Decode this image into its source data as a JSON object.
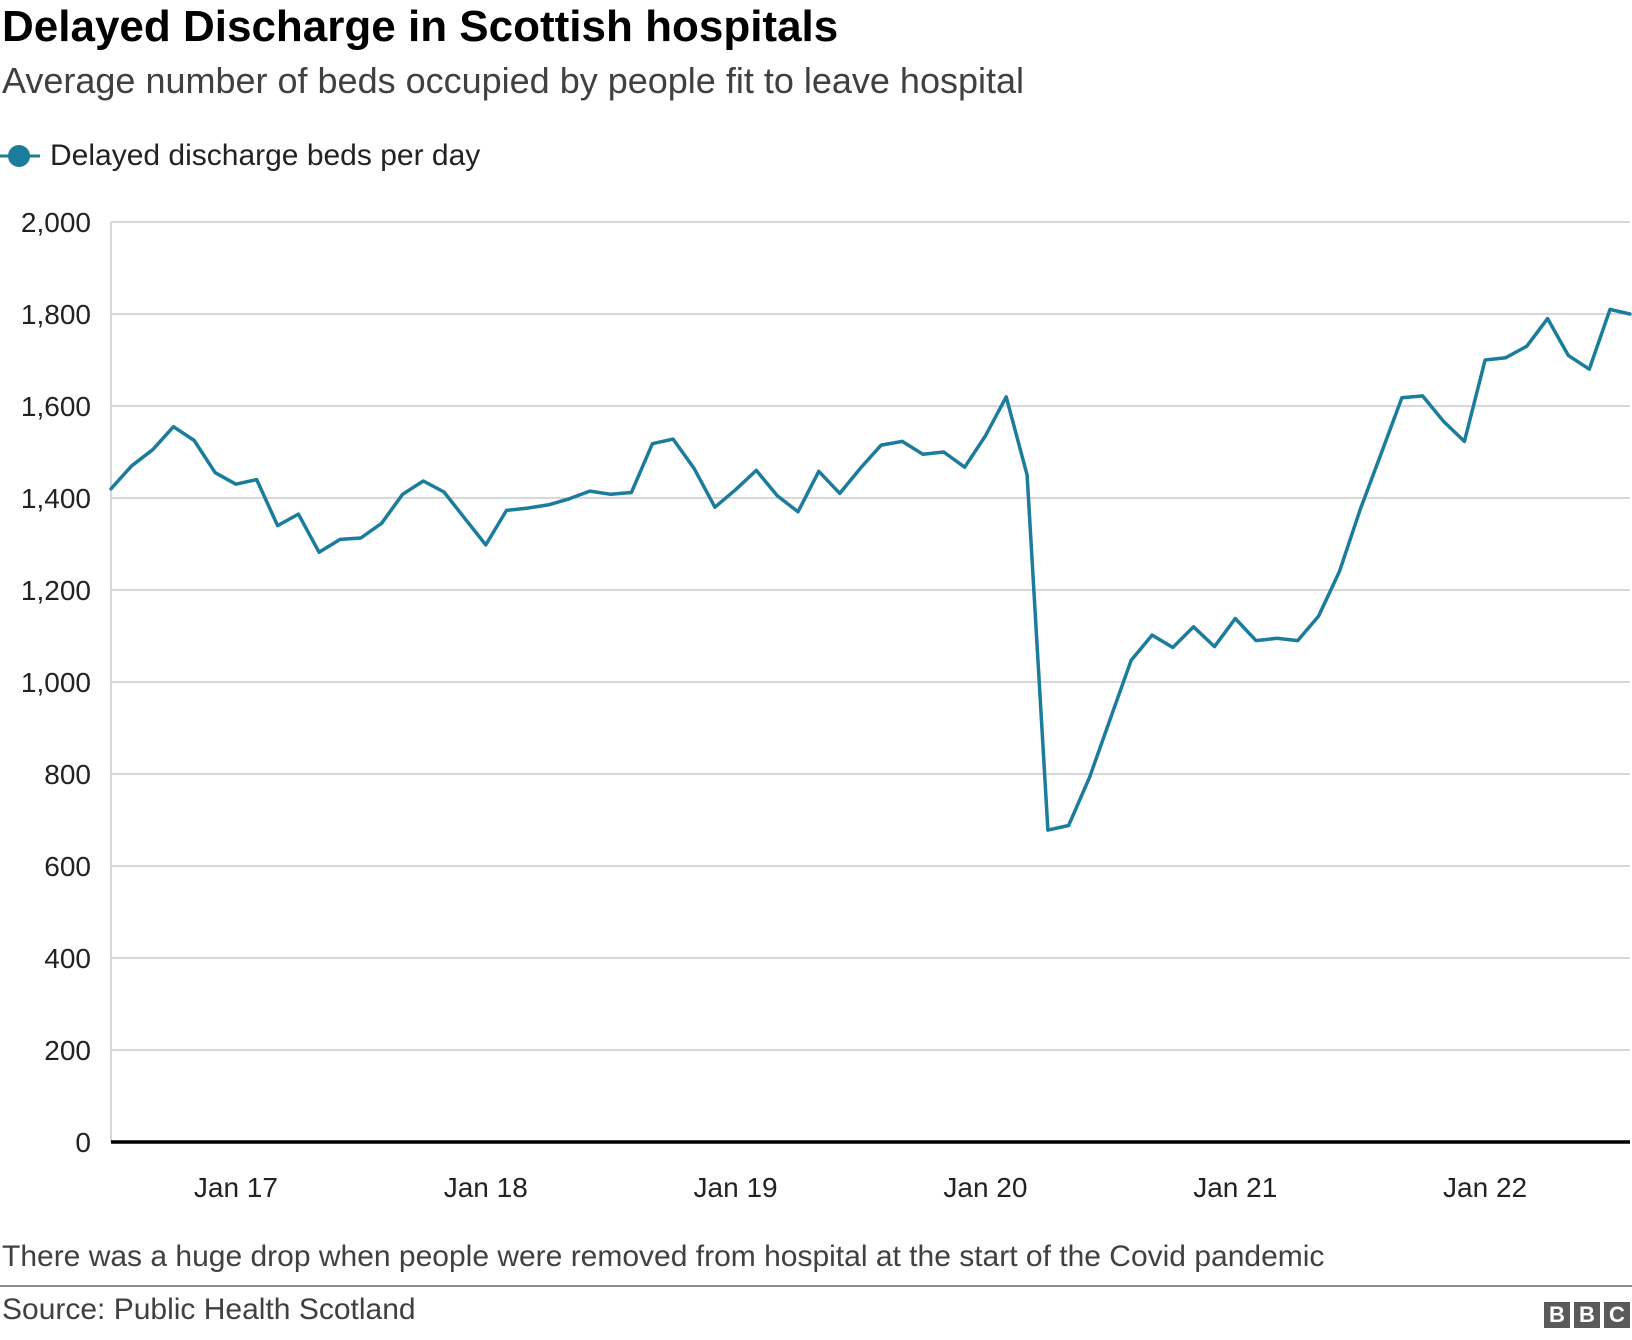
{
  "header": {
    "title": "Delayed Discharge in Scottish hospitals",
    "subtitle": "Average number of beds occupied by people fit to leave hospital"
  },
  "legend": {
    "label": "Delayed discharge beds per day"
  },
  "footer": {
    "caption": "There was a huge drop when people were removed from hospital at the start of the Covid pandemic",
    "source": "Source: Public Health Scotland",
    "logo": [
      "B",
      "B",
      "C"
    ]
  },
  "colors": {
    "line": "#1b7c9c",
    "grid": "#cccccc",
    "axis": "#000000"
  },
  "chart_data": {
    "type": "line",
    "title": "Delayed Discharge in Scottish hospitals",
    "subtitle": "Average number of beds occupied by people fit to leave hospital",
    "xlabel": "",
    "ylabel": "",
    "ylim": [
      0,
      2000
    ],
    "yticks": [
      0,
      200,
      400,
      600,
      800,
      1000,
      1200,
      1400,
      1600,
      1800,
      2000
    ],
    "ytick_labels": [
      "0",
      "200",
      "400",
      "600",
      "800",
      "1,000",
      "1,200",
      "1,400",
      "1,600",
      "1,800",
      "2,000"
    ],
    "xlim": [
      2016.5,
      2022.58
    ],
    "xticks": [
      2017,
      2018,
      2019,
      2020,
      2021,
      2022
    ],
    "xtick_labels": [
      "Jan 17",
      "Jan 18",
      "Jan 19",
      "Jan 20",
      "Jan 21",
      "Jan 22"
    ],
    "grid": true,
    "legend_position": "top-left",
    "series": [
      {
        "name": "Delayed discharge beds per day",
        "x": [
          2016.5,
          2016.583,
          2016.667,
          2016.75,
          2016.833,
          2016.917,
          2017.0,
          2017.083,
          2017.167,
          2017.25,
          2017.333,
          2017.417,
          2017.5,
          2017.583,
          2017.667,
          2017.75,
          2017.833,
          2017.917,
          2018.0,
          2018.083,
          2018.167,
          2018.25,
          2018.333,
          2018.417,
          2018.5,
          2018.583,
          2018.667,
          2018.75,
          2018.833,
          2018.917,
          2019.0,
          2019.083,
          2019.167,
          2019.25,
          2019.333,
          2019.417,
          2019.5,
          2019.583,
          2019.667,
          2019.75,
          2019.833,
          2019.917,
          2020.0,
          2020.083,
          2020.167,
          2020.25,
          2020.333,
          2020.417,
          2020.5,
          2020.583,
          2020.667,
          2020.75,
          2020.833,
          2020.917,
          2021.0,
          2021.083,
          2021.167,
          2021.25,
          2021.333,
          2021.417,
          2021.5,
          2021.583,
          2021.667,
          2021.75,
          2021.833,
          2021.917,
          2022.0,
          2022.083,
          2022.167,
          2022.25,
          2022.333,
          2022.417,
          2022.5,
          2022.58
        ],
        "values": [
          1420,
          1470,
          1505,
          1555,
          1525,
          1455,
          1430,
          1440,
          1340,
          1365,
          1282,
          1310,
          1313,
          1345,
          1408,
          1437,
          1413,
          1355,
          1298,
          1373,
          1378,
          1385,
          1398,
          1415,
          1408,
          1412,
          1518,
          1528,
          1465,
          1380,
          1418,
          1460,
          1405,
          1370,
          1458,
          1410,
          1465,
          1515,
          1523,
          1495,
          1500,
          1467,
          1535,
          1620,
          1450,
          678,
          688,
          793,
          920,
          1047,
          1102,
          1075,
          1120,
          1077,
          1138,
          1090,
          1095,
          1090,
          1143,
          1240,
          1375,
          1495,
          1618,
          1622,
          1567,
          1523,
          1700,
          1705,
          1730,
          1790,
          1710,
          1680,
          1810,
          1800
        ]
      }
    ]
  }
}
